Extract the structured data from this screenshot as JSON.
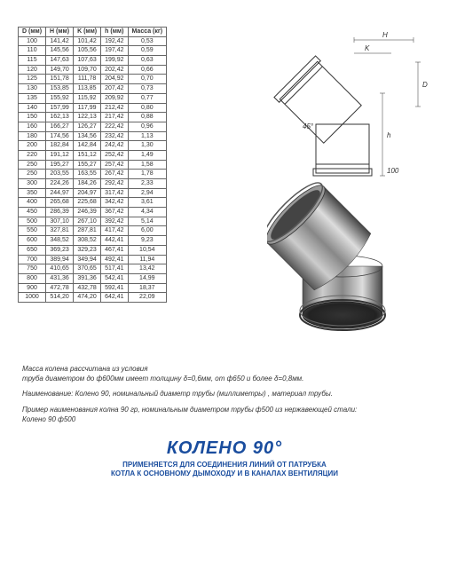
{
  "table": {
    "headers": [
      "D (мм)",
      "H (мм)",
      "K (мм)",
      "h (мм)",
      "Масса (кг)"
    ],
    "rows": [
      [
        "100",
        "141,42",
        "101,42",
        "192,42",
        "0,53"
      ],
      [
        "110",
        "145,56",
        "105,56",
        "197,42",
        "0,59"
      ],
      [
        "115",
        "147,63",
        "107,63",
        "199,92",
        "0,63"
      ],
      [
        "120",
        "149,70",
        "109,70",
        "202,42",
        "0,66"
      ],
      [
        "125",
        "151,78",
        "111,78",
        "204,92",
        "0,70"
      ],
      [
        "130",
        "153,85",
        "113,85",
        "207,42",
        "0,73"
      ],
      [
        "135",
        "155,92",
        "115,92",
        "209,92",
        "0,77"
      ],
      [
        "140",
        "157,99",
        "117,99",
        "212,42",
        "0,80"
      ],
      [
        "150",
        "162,13",
        "122,13",
        "217,42",
        "0,88"
      ],
      [
        "160",
        "166,27",
        "126,27",
        "222,42",
        "0,96"
      ],
      [
        "180",
        "174,56",
        "134,56",
        "232,42",
        "1,13"
      ],
      [
        "200",
        "182,84",
        "142,84",
        "242,42",
        "1,30"
      ],
      [
        "220",
        "191,12",
        "151,12",
        "252,42",
        "1,49"
      ],
      [
        "250",
        "195,27",
        "155,27",
        "257,42",
        "1,58"
      ],
      [
        "250",
        "203,55",
        "163,55",
        "267,42",
        "1,78"
      ],
      [
        "300",
        "224,26",
        "184,26",
        "292,42",
        "2,33"
      ],
      [
        "350",
        "244,97",
        "204,97",
        "317,42",
        "2,94"
      ],
      [
        "400",
        "265,68",
        "225,68",
        "342,42",
        "3,61"
      ],
      [
        "450",
        "286,39",
        "246,39",
        "367,42",
        "4,34"
      ],
      [
        "500",
        "307,10",
        "267,10",
        "392,42",
        "5,14"
      ],
      [
        "550",
        "327,81",
        "287,81",
        "417,42",
        "6,00"
      ],
      [
        "600",
        "348,52",
        "308,52",
        "442,41",
        "9,23"
      ],
      [
        "650",
        "369,23",
        "329,23",
        "467,41",
        "10,54"
      ],
      [
        "700",
        "389,94",
        "349,94",
        "492,41",
        "11,94"
      ],
      [
        "750",
        "410,65",
        "370,65",
        "517,41",
        "13,42"
      ],
      [
        "800",
        "431,36",
        "391,36",
        "542,41",
        "14,99"
      ],
      [
        "900",
        "472,78",
        "432,78",
        "592,41",
        "18,37"
      ],
      [
        "1000",
        "514,20",
        "474,20",
        "642,41",
        "22,09"
      ]
    ]
  },
  "notes": {
    "line1": "Масса колена рассчитана из условия",
    "line2": "труба диаметром до ф600мм имеет толщину δ=0,6мм, от ф650 и более δ=0,8мм.",
    "line3": "Наименование: Колено 90, номинальный диаметр трубы (миллиметры) , материал трубы.",
    "line4": "Пример наименования колна 90 гр, номинальным диаметром трубы ф500 из нержавеющей стали:",
    "line5": "Колено 90 ф500"
  },
  "title": {
    "main": "КОЛЕНО 90°",
    "sub1": "ПРИМЕНЯЕТСЯ ДЛЯ СОЕДИНЕНИЯ ЛИНИЙ ОТ ПАТРУБКА",
    "sub2": "КОТЛА К ОСНОВНОМУ ДЫМОХОДУ И В КАНАЛАХ ВЕНТИЛЯЦИИ"
  },
  "dims": {
    "H": "H",
    "K": "K",
    "D": "D",
    "h": "h",
    "angle": "45°",
    "sock": "100"
  },
  "colors": {
    "title": "#1a4d9e",
    "line": "#333333",
    "metal_light": "#b8b8b8",
    "metal_mid": "#888888",
    "metal_dark": "#555555"
  }
}
